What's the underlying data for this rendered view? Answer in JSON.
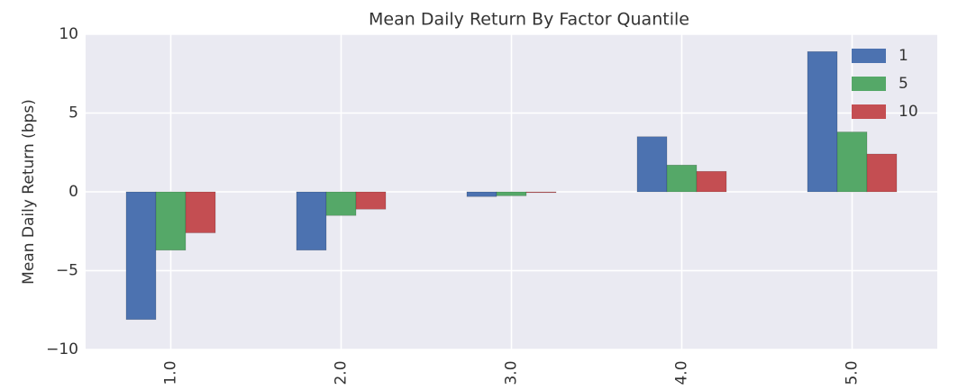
{
  "chart_data": {
    "type": "bar",
    "title": "Mean Daily Return By Factor Quantile",
    "y_label": "Mean Daily Return (bps)",
    "categories": [
      "1.0",
      "2.0",
      "3.0",
      "4.0",
      "5.0"
    ],
    "series": [
      {
        "name": "1",
        "color": "#4c72b0",
        "values": [
          -8.1,
          -3.7,
          -0.3,
          3.5,
          8.9
        ]
      },
      {
        "name": "5",
        "color": "#55a868",
        "values": [
          -3.7,
          -1.5,
          -0.25,
          1.7,
          3.8
        ]
      },
      {
        "name": "10",
        "color": "#c44e52",
        "values": [
          -2.6,
          -1.1,
          -0.05,
          1.3,
          2.4
        ]
      }
    ],
    "ylim": [
      -10,
      10
    ],
    "yticks": [
      {
        "value": -10,
        "label": "−10"
      },
      {
        "value": -5,
        "label": "−5"
      },
      0,
      5,
      10
    ],
    "grid": true,
    "legend": "upper right"
  }
}
